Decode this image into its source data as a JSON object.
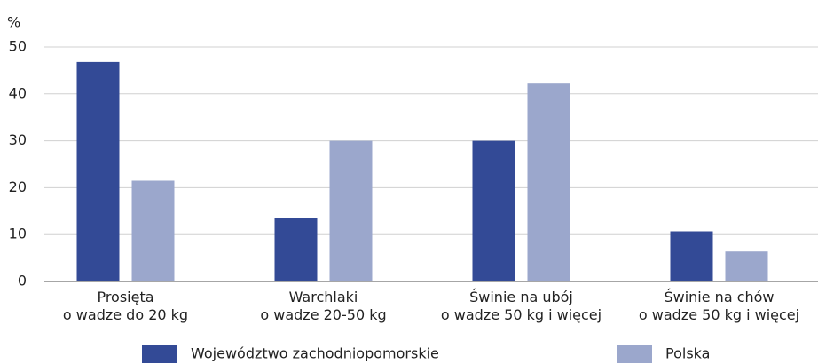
{
  "chart_data": {
    "type": "bar",
    "unit_label": "%",
    "categories": [
      [
        "Prosięta",
        "o wadze do 20 kg"
      ],
      [
        "Warchlaki",
        "o wadze 20-50 kg"
      ],
      [
        "Świnie na ubój",
        "o wadze 50 kg i więcej"
      ],
      [
        "Świnie na chów",
        "o wadze 50 kg i więcej"
      ]
    ],
    "series": [
      {
        "name": "Województwo zachodniopomorskie",
        "color": "#334a96",
        "values": [
          46.8,
          13.6,
          30.0,
          10.7
        ]
      },
      {
        "name": "Polska",
        "color": "#9ba7cc",
        "values": [
          21.5,
          30.0,
          42.2,
          6.4
        ]
      }
    ],
    "ylim": [
      0,
      50
    ],
    "yticks": [
      0,
      10,
      20,
      30,
      40,
      50
    ],
    "grid": true,
    "legend": "bottom"
  }
}
